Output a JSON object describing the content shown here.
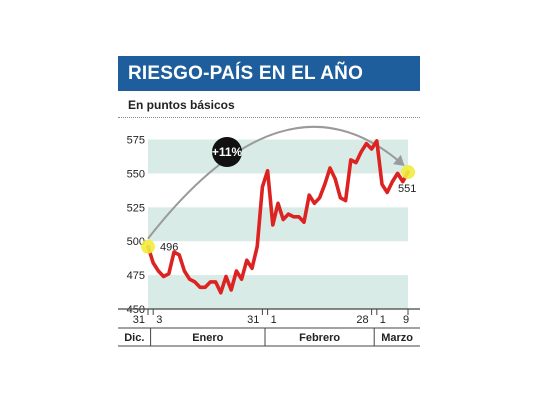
{
  "header": {
    "title": "RIESGO-PAÍS EN EL AÑO",
    "subtitle": "En puntos básicos"
  },
  "chart_data": {
    "type": "line",
    "ylabel": "",
    "xlabel": "",
    "ylim": [
      450,
      585
    ],
    "yticks": [
      450,
      475,
      500,
      525,
      550,
      575
    ],
    "grid": "alternating horizontal bands",
    "color_line": "#dd2222",
    "color_band": "#d9ebe7",
    "color_highlight": "#f1ec3c",
    "color_arc": "#9a9a9a",
    "x_day_labels": [
      "31",
      "3",
      "31",
      "1",
      "28",
      "1",
      "9"
    ],
    "month_labels": [
      "Dic.",
      "Enero",
      "Febrero",
      "Marzo"
    ],
    "series": [
      {
        "values": [
          496,
          484,
          478,
          474,
          476,
          492,
          490,
          478,
          472,
          470,
          466,
          466,
          470,
          470,
          462,
          474,
          464,
          478,
          472,
          486,
          480,
          496,
          540,
          552,
          512,
          528,
          516,
          520,
          518,
          518,
          514,
          534,
          528,
          532,
          542,
          554,
          546,
          532,
          530,
          560,
          558,
          566,
          572,
          568,
          574,
          542,
          536,
          544,
          550,
          544,
          551
        ]
      }
    ],
    "annotations": {
      "start_label": "496",
      "end_label": "551",
      "change_badge": "+11%"
    }
  }
}
